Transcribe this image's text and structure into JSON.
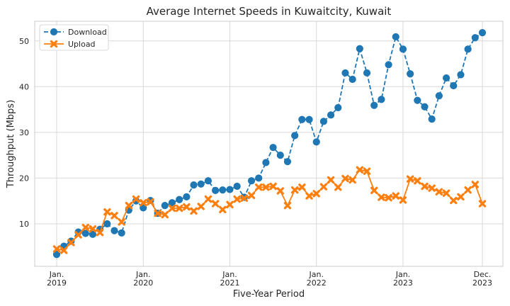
{
  "chart_data": {
    "type": "line",
    "title": "Average Internet Speeds in Kuwaitcity, Kuwait",
    "xlabel": "Five-Year Period",
    "ylabel": "Throughput (Mbps)",
    "x_tick_labels": [
      {
        "month_index": 0,
        "line1": "Jan.",
        "line2": "2019"
      },
      {
        "month_index": 12,
        "line1": "Jan.",
        "line2": "2020"
      },
      {
        "month_index": 24,
        "line1": "Jan.",
        "line2": "2021"
      },
      {
        "month_index": 36,
        "line1": "Jan.",
        "line2": "2022"
      },
      {
        "month_index": 48,
        "line1": "Jan.",
        "line2": "2023"
      },
      {
        "month_index": 59,
        "line1": "Dec.",
        "line2": "2023"
      }
    ],
    "y_ticks": [
      10,
      20,
      30,
      40,
      50
    ],
    "ylim": [
      0.7,
      54.3
    ],
    "grid": true,
    "legend_position": "top-left",
    "series": [
      {
        "name": "Download",
        "color": "#1f77b4",
        "line_style": "dashed",
        "marker": "circle",
        "values": [
          3.3,
          5.1,
          6.2,
          8.2,
          7.9,
          7.7,
          8.8,
          10.0,
          8.5,
          8.0,
          13.0,
          15.0,
          13.5,
          15.1,
          12.3,
          14.0,
          14.6,
          15.3,
          15.9,
          18.5,
          18.7,
          19.4,
          17.3,
          17.4,
          17.5,
          18.2,
          15.8,
          19.4,
          20.0,
          23.4,
          26.7,
          25.0,
          23.6,
          29.3,
          32.8,
          32.8,
          27.9,
          32.4,
          33.8,
          35.4,
          43.0,
          41.6,
          48.3,
          43.0,
          35.9,
          37.2,
          44.8,
          50.9,
          48.2,
          42.8,
          37.0,
          35.6,
          32.9,
          38.0,
          41.9,
          40.2,
          42.6,
          48.2,
          50.7,
          51.8
        ]
      },
      {
        "name": "Upload",
        "color": "#ff7f0e",
        "line_style": "solid",
        "marker": "x",
        "values": [
          4.5,
          4.2,
          5.9,
          7.6,
          9.2,
          8.9,
          8.1,
          12.6,
          11.8,
          10.4,
          14.0,
          15.4,
          14.6,
          14.8,
          12.3,
          12.0,
          13.4,
          13.4,
          13.7,
          12.8,
          13.8,
          15.4,
          14.4,
          13.1,
          14.2,
          15.4,
          15.6,
          16.2,
          18.0,
          18.0,
          18.2,
          17.2,
          14.0,
          17.4,
          18.0,
          16.1,
          16.6,
          18.1,
          19.6,
          18.0,
          19.9,
          19.6,
          21.8,
          21.5,
          17.3,
          15.8,
          15.7,
          16.1,
          15.2,
          19.8,
          19.4,
          18.2,
          17.8,
          17.0,
          16.7,
          15.1,
          15.9,
          17.4,
          18.6,
          14.4
        ]
      }
    ]
  }
}
